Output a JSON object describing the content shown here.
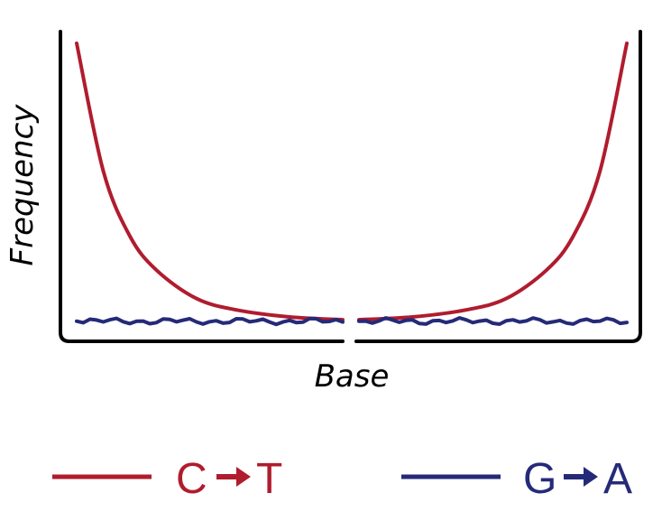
{
  "chart_data": {
    "type": "line",
    "xlabel": "Base",
    "ylabel": "Frequency",
    "axes_style": "U-shaped frame, no ticks, no gridlines",
    "grid": false,
    "legend_position": "bottom",
    "x_break": true,
    "series": [
      {
        "name": "C → T",
        "color": "#b01c2e",
        "description_points": "high at both read ends, decaying toward the middle",
        "left": [
          [
            0,
            1.0
          ],
          [
            0.1,
            0.55
          ],
          [
            0.2,
            0.32
          ],
          [
            0.3,
            0.2
          ],
          [
            0.45,
            0.1
          ],
          [
            0.6,
            0.06
          ],
          [
            0.8,
            0.035
          ],
          [
            1.0,
            0.025
          ]
        ],
        "right": [
          [
            0,
            0.025
          ],
          [
            0.2,
            0.035
          ],
          [
            0.4,
            0.06
          ],
          [
            0.55,
            0.1
          ],
          [
            0.7,
            0.2
          ],
          [
            0.8,
            0.32
          ],
          [
            0.9,
            0.55
          ],
          [
            1.0,
            1.0
          ]
        ]
      },
      {
        "name": "G → A",
        "color": "#252a78",
        "left": [
          [
            0,
            0.02
          ],
          [
            1.0,
            0.02
          ]
        ],
        "right": [
          [
            0,
            0.02
          ],
          [
            1.0,
            0.02
          ]
        ]
      }
    ]
  },
  "legend": {
    "items": [
      {
        "name": "C → T",
        "color": "#b01c2e",
        "from": "C",
        "to": "T"
      },
      {
        "name": "G → A",
        "color": "#252a78",
        "from": "G",
        "to": "A"
      }
    ]
  }
}
